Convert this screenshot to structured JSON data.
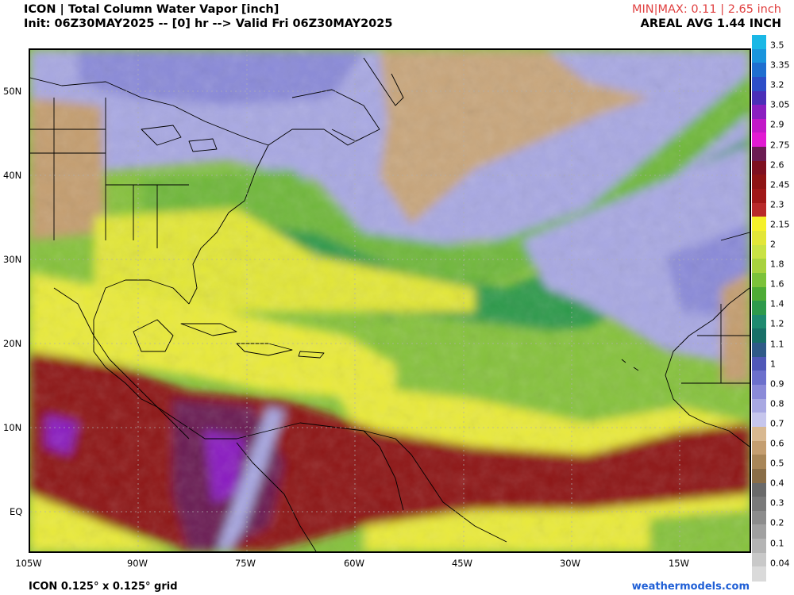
{
  "header": {
    "title": "ICON | Total Column Water Vapor [inch]",
    "init": "Init: 06Z30MAY2025 -- [0] hr --> Valid Fri 06Z30MAY2025",
    "minmax": "MIN|MAX: 0.11 | 2.65 inch",
    "areal_avg": "AREAL AVG 1.44 INCH"
  },
  "footer": {
    "grid": "ICON 0.125° x 0.125° grid",
    "site": "weathermodels.com"
  },
  "axes": {
    "lat_labels": [
      "50N",
      "40N",
      "30N",
      "20N",
      "10N",
      "EQ"
    ],
    "lon_labels": [
      "105W",
      "90W",
      "75W",
      "60W",
      "45W",
      "30W",
      "15W"
    ]
  },
  "colorbar": {
    "labels": [
      "3.5",
      "3.35",
      "3.2",
      "3.05",
      "2.9",
      "2.75",
      "2.6",
      "2.45",
      "2.3",
      "2.15",
      "2",
      "1.8",
      "1.6",
      "1.4",
      "1.2",
      "1.1",
      "1",
      "0.9",
      "0.8",
      "0.7",
      "0.6",
      "0.5",
      "0.4",
      "0.3",
      "0.2",
      "0.1",
      "0.04"
    ],
    "colors": [
      "#1bb8e6",
      "#1a95dd",
      "#1f6fd0",
      "#2d4ec8",
      "#4a2fb8",
      "#8a1fc0",
      "#c218c8",
      "#e21ad2",
      "#6b1c52",
      "#7e1020",
      "#8e1414",
      "#a01818",
      "#b82a2a",
      "#f5f02a",
      "#e2e638",
      "#c9e244",
      "#a8d23e",
      "#7cc23a",
      "#4eac36",
      "#2e9a4c",
      "#1f8a70",
      "#187068",
      "#2f5a88",
      "#5058b8",
      "#6c70cc",
      "#8a8ad8",
      "#a8a8e2",
      "#c6c6ec",
      "#d8b890",
      "#c49e70",
      "#a88658",
      "#8a6e48",
      "#6a6a6a",
      "#7a7a7a",
      "#8c8c8c",
      "#a0a0a0",
      "#b4b4b4",
      "#c8c8c8",
      "#dadada"
    ]
  }
}
